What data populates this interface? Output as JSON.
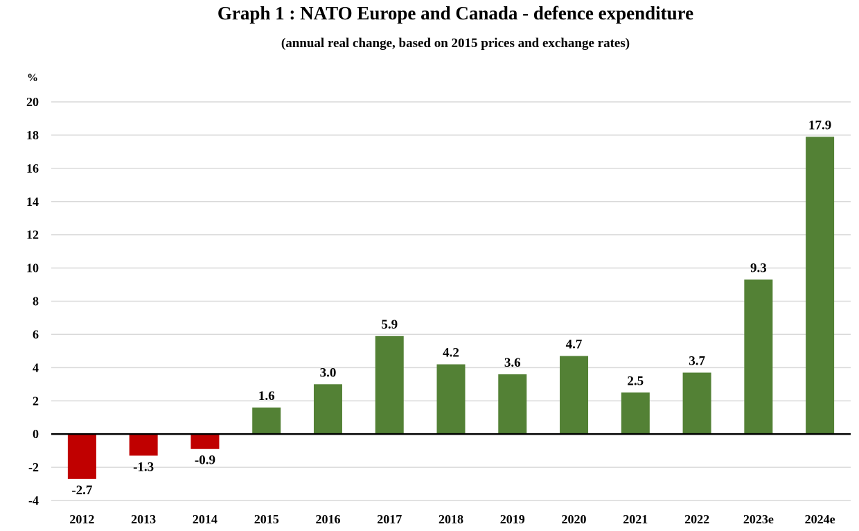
{
  "chart_data": {
    "type": "bar",
    "title": "Graph 1 : NATO Europe and Canada - defence expenditure",
    "subtitle": "(annual real change, based on 2015 prices and exchange rates)",
    "ylabel": "%",
    "xlabel": "",
    "ylim": [
      -4,
      20
    ],
    "yticks": [
      -4,
      -2,
      0,
      2,
      4,
      6,
      8,
      10,
      12,
      14,
      16,
      18,
      20
    ],
    "grid": true,
    "categories": [
      "2012",
      "2013",
      "2014",
      "2015",
      "2016",
      "2017",
      "2018",
      "2019",
      "2020",
      "2021",
      "2022",
      "2023e",
      "2024e"
    ],
    "values": [
      -2.7,
      -1.3,
      -0.9,
      1.6,
      3.0,
      5.9,
      4.2,
      3.6,
      4.7,
      2.5,
      3.7,
      9.3,
      17.9
    ],
    "data_labels": [
      "-2.7",
      "-1.3",
      "-0.9",
      "1.6",
      "3.0",
      "5.9",
      "4.2",
      "3.6",
      "4.7",
      "2.5",
      "3.7",
      "9.3",
      "17.9"
    ],
    "colors": {
      "positive": "#538135",
      "negative": "#C00000",
      "grid": "#D9D9D9",
      "zero_line": "#000000"
    }
  }
}
